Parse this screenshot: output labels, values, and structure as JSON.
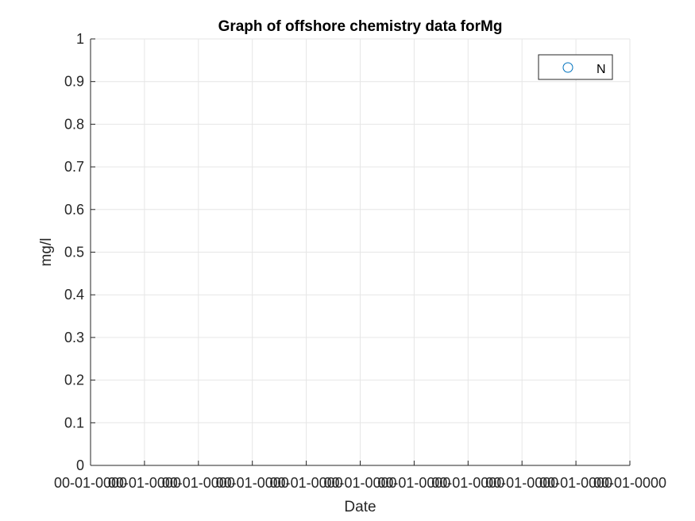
{
  "chart_data": {
    "type": "scatter",
    "title": "Graph of offshore chemistry data forMg",
    "xlabel": "Date",
    "ylabel": "mg/l",
    "ylim": [
      0,
      1
    ],
    "y_ticks": [
      "0",
      "0.1",
      "0.2",
      "0.3",
      "0.4",
      "0.5",
      "0.6",
      "0.7",
      "0.8",
      "0.9",
      "1"
    ],
    "x_ticks": [
      "00-01-0000",
      "00-01-0000",
      "00-01-0000",
      "00-01-0000",
      "00-01-0000",
      "00-01-0000",
      "00-01-0000",
      "00-01-0000",
      "00-01-0000",
      "00-01-0000",
      "00-01-0000"
    ],
    "grid": true,
    "legend_position": "top-right",
    "series": [
      {
        "name": "N",
        "marker": "circle",
        "color": "#0072bd",
        "values": []
      }
    ]
  }
}
